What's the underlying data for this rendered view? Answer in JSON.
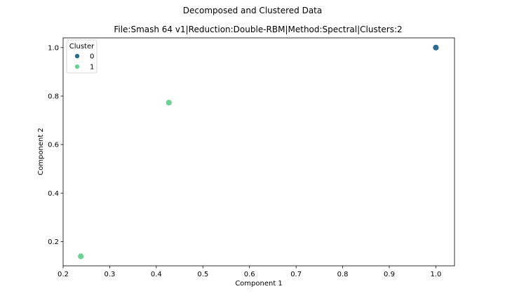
{
  "chart_data": {
    "type": "scatter",
    "suptitle": "Decomposed and Clustered Data",
    "title": "File:Smash 64 v1|Reduction:Double-RBM|Method:Spectral|Clusters:2",
    "xlabel": "Component 1",
    "ylabel": "Component 2",
    "xlim": [
      0.2,
      1.04
    ],
    "ylim": [
      0.1,
      1.04
    ],
    "xticks": [
      0.2,
      0.3,
      0.4,
      0.5,
      0.6,
      0.7,
      0.8,
      0.9,
      1.0
    ],
    "yticks": [
      0.2,
      0.4,
      0.6,
      0.8,
      1.0
    ],
    "grid": false,
    "legend": {
      "title": "Cluster",
      "placement": "top-left"
    },
    "series": [
      {
        "name": "0",
        "color": "#2f6a8e",
        "points": [
          {
            "x": 1.0,
            "y": 1.0
          }
        ]
      },
      {
        "name": "1",
        "color": "#6ccf96",
        "points": [
          {
            "x": 0.427,
            "y": 0.773
          },
          {
            "x": 0.238,
            "y": 0.139
          }
        ]
      }
    ]
  }
}
